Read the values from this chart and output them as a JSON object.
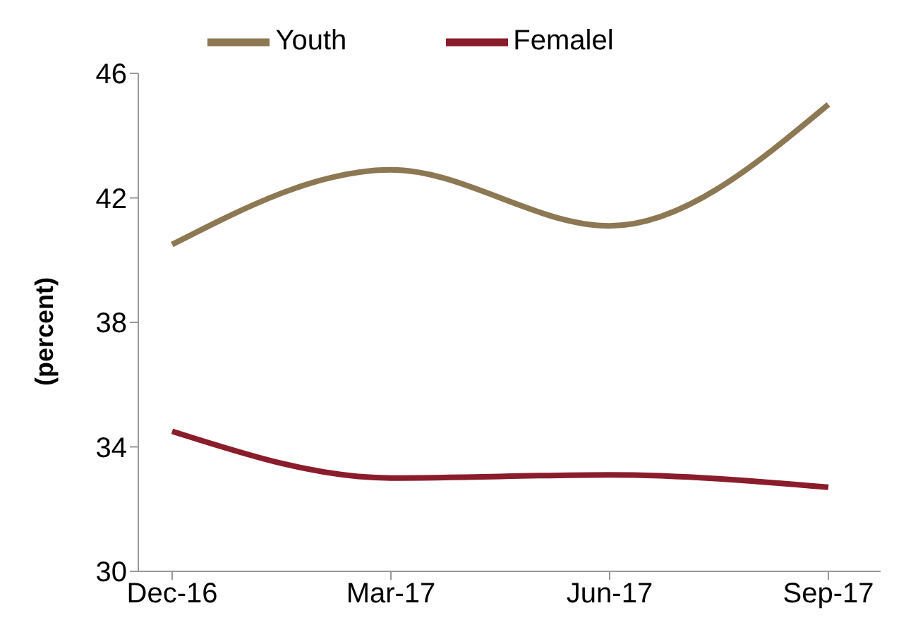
{
  "chart_data": {
    "type": "line",
    "ylabel": "(percent)",
    "categories": [
      "Dec-16",
      "Mar-17",
      "Jun-17",
      "Sep-17"
    ],
    "series": [
      {
        "name": "Youth",
        "color": "#8c7853",
        "values": [
          40.5,
          42.9,
          41.1,
          45.0
        ]
      },
      {
        "name": "Femalel",
        "color": "#8b1c2c",
        "values": [
          34.5,
          33.0,
          33.1,
          32.7
        ]
      }
    ],
    "ylim": [
      30,
      46
    ],
    "yticks": [
      30,
      34,
      38,
      42,
      46
    ],
    "grid": false,
    "legend": "top",
    "marker": "none",
    "line_style": "solid"
  }
}
